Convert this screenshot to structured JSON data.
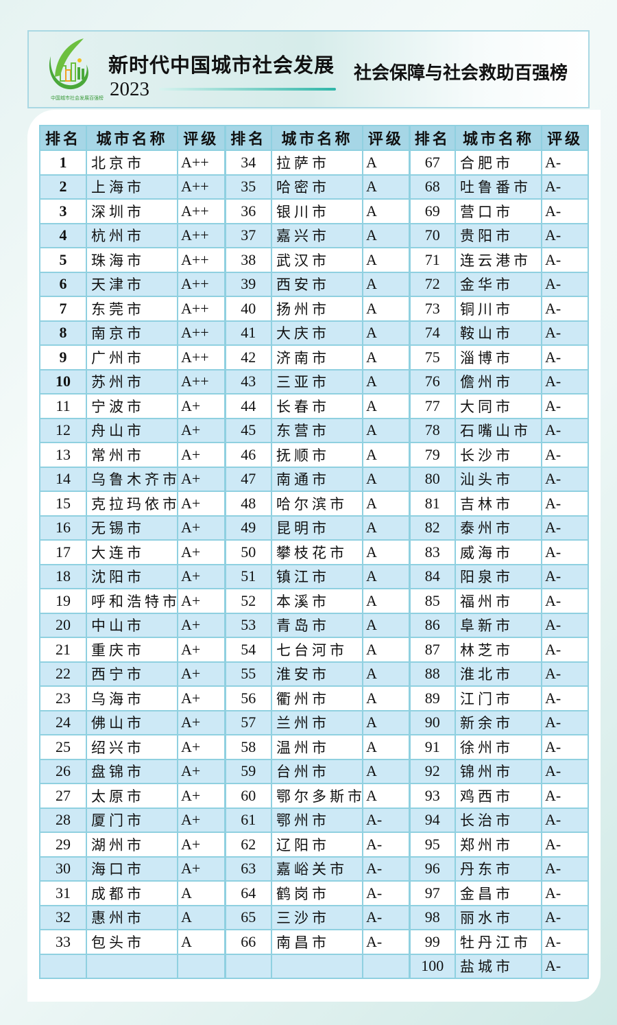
{
  "header": {
    "title": "新时代中国城市社会发展",
    "year": "2023",
    "logo_text": "中国城市社会发展百强榜",
    "subtitle": "社会保障与社会救助百强榜"
  },
  "columns": [
    "排名",
    "城市名称",
    "评级"
  ],
  "colors": {
    "header_row": "#a6d6e6",
    "alt_row": "#cde9f6",
    "border": "#8fd0e0",
    "accent_line": "#2fb6a8"
  },
  "rankings": [
    {
      "rank": "1",
      "city": "北京市",
      "grade": "A++"
    },
    {
      "rank": "2",
      "city": "上海市",
      "grade": "A++"
    },
    {
      "rank": "3",
      "city": "深圳市",
      "grade": "A++"
    },
    {
      "rank": "4",
      "city": "杭州市",
      "grade": "A++"
    },
    {
      "rank": "5",
      "city": "珠海市",
      "grade": "A++"
    },
    {
      "rank": "6",
      "city": "天津市",
      "grade": "A++"
    },
    {
      "rank": "7",
      "city": "东莞市",
      "grade": "A++"
    },
    {
      "rank": "8",
      "city": "南京市",
      "grade": "A++"
    },
    {
      "rank": "9",
      "city": "广州市",
      "grade": "A++"
    },
    {
      "rank": "10",
      "city": "苏州市",
      "grade": "A++"
    },
    {
      "rank": "11",
      "city": "宁波市",
      "grade": "A+"
    },
    {
      "rank": "12",
      "city": "舟山市",
      "grade": "A+"
    },
    {
      "rank": "13",
      "city": "常州市",
      "grade": "A+"
    },
    {
      "rank": "14",
      "city": "乌鲁木齐市",
      "grade": "A+"
    },
    {
      "rank": "15",
      "city": "克拉玛依市",
      "grade": "A+"
    },
    {
      "rank": "16",
      "city": "无锡市",
      "grade": "A+"
    },
    {
      "rank": "17",
      "city": "大连市",
      "grade": "A+"
    },
    {
      "rank": "18",
      "city": "沈阳市",
      "grade": "A+"
    },
    {
      "rank": "19",
      "city": "呼和浩特市",
      "grade": "A+"
    },
    {
      "rank": "20",
      "city": "中山市",
      "grade": "A+"
    },
    {
      "rank": "21",
      "city": "重庆市",
      "grade": "A+"
    },
    {
      "rank": "22",
      "city": "西宁市",
      "grade": "A+"
    },
    {
      "rank": "23",
      "city": "乌海市",
      "grade": "A+"
    },
    {
      "rank": "24",
      "city": "佛山市",
      "grade": "A+"
    },
    {
      "rank": "25",
      "city": "绍兴市",
      "grade": "A+"
    },
    {
      "rank": "26",
      "city": "盘锦市",
      "grade": "A+"
    },
    {
      "rank": "27",
      "city": "太原市",
      "grade": "A+"
    },
    {
      "rank": "28",
      "city": "厦门市",
      "grade": "A+"
    },
    {
      "rank": "29",
      "city": "湖州市",
      "grade": "A+"
    },
    {
      "rank": "30",
      "city": "海口市",
      "grade": "A+"
    },
    {
      "rank": "31",
      "city": "成都市",
      "grade": "A"
    },
    {
      "rank": "32",
      "city": "惠州市",
      "grade": "A"
    },
    {
      "rank": "33",
      "city": "包头市",
      "grade": "A"
    },
    {
      "rank": "34",
      "city": "拉萨市",
      "grade": "A"
    },
    {
      "rank": "35",
      "city": "哈密市",
      "grade": "A"
    },
    {
      "rank": "36",
      "city": "银川市",
      "grade": "A"
    },
    {
      "rank": "37",
      "city": "嘉兴市",
      "grade": "A"
    },
    {
      "rank": "38",
      "city": "武汉市",
      "grade": "A"
    },
    {
      "rank": "39",
      "city": "西安市",
      "grade": "A"
    },
    {
      "rank": "40",
      "city": "扬州市",
      "grade": "A"
    },
    {
      "rank": "41",
      "city": "大庆市",
      "grade": "A"
    },
    {
      "rank": "42",
      "city": "济南市",
      "grade": "A"
    },
    {
      "rank": "43",
      "city": "三亚市",
      "grade": "A"
    },
    {
      "rank": "44",
      "city": "长春市",
      "grade": "A"
    },
    {
      "rank": "45",
      "city": "东营市",
      "grade": "A"
    },
    {
      "rank": "46",
      "city": "抚顺市",
      "grade": "A"
    },
    {
      "rank": "47",
      "city": "南通市",
      "grade": "A"
    },
    {
      "rank": "48",
      "city": "哈尔滨市",
      "grade": "A"
    },
    {
      "rank": "49",
      "city": "昆明市",
      "grade": "A"
    },
    {
      "rank": "50",
      "city": "攀枝花市",
      "grade": "A"
    },
    {
      "rank": "51",
      "city": "镇江市",
      "grade": "A"
    },
    {
      "rank": "52",
      "city": "本溪市",
      "grade": "A"
    },
    {
      "rank": "53",
      "city": "青岛市",
      "grade": "A"
    },
    {
      "rank": "54",
      "city": "七台河市",
      "grade": "A"
    },
    {
      "rank": "55",
      "city": "淮安市",
      "grade": "A"
    },
    {
      "rank": "56",
      "city": "衢州市",
      "grade": "A"
    },
    {
      "rank": "57",
      "city": "兰州市",
      "grade": "A"
    },
    {
      "rank": "58",
      "city": "温州市",
      "grade": "A"
    },
    {
      "rank": "59",
      "city": "台州市",
      "grade": "A"
    },
    {
      "rank": "60",
      "city": "鄂尔多斯市",
      "grade": "A"
    },
    {
      "rank": "61",
      "city": "鄂州市",
      "grade": "A-"
    },
    {
      "rank": "62",
      "city": "辽阳市",
      "grade": "A-"
    },
    {
      "rank": "63",
      "city": "嘉峪关市",
      "grade": "A-"
    },
    {
      "rank": "64",
      "city": "鹤岗市",
      "grade": "A-"
    },
    {
      "rank": "65",
      "city": "三沙市",
      "grade": "A-"
    },
    {
      "rank": "66",
      "city": "南昌市",
      "grade": "A-"
    },
    {
      "rank": "67",
      "city": "合肥市",
      "grade": "A-"
    },
    {
      "rank": "68",
      "city": "吐鲁番市",
      "grade": "A-"
    },
    {
      "rank": "69",
      "city": "营口市",
      "grade": "A-"
    },
    {
      "rank": "70",
      "city": "贵阳市",
      "grade": "A-"
    },
    {
      "rank": "71",
      "city": "连云港市",
      "grade": "A-"
    },
    {
      "rank": "72",
      "city": "金华市",
      "grade": "A-"
    },
    {
      "rank": "73",
      "city": "铜川市",
      "grade": "A-"
    },
    {
      "rank": "74",
      "city": "鞍山市",
      "grade": "A-"
    },
    {
      "rank": "75",
      "city": "淄博市",
      "grade": "A-"
    },
    {
      "rank": "76",
      "city": "儋州市",
      "grade": "A-"
    },
    {
      "rank": "77",
      "city": "大同市",
      "grade": "A-"
    },
    {
      "rank": "78",
      "city": "石嘴山市",
      "grade": "A-"
    },
    {
      "rank": "79",
      "city": "长沙市",
      "grade": "A-"
    },
    {
      "rank": "80",
      "city": "汕头市",
      "grade": "A-"
    },
    {
      "rank": "81",
      "city": "吉林市",
      "grade": "A-"
    },
    {
      "rank": "82",
      "city": "泰州市",
      "grade": "A-"
    },
    {
      "rank": "83",
      "city": "威海市",
      "grade": "A-"
    },
    {
      "rank": "84",
      "city": "阳泉市",
      "grade": "A-"
    },
    {
      "rank": "85",
      "city": "福州市",
      "grade": "A-"
    },
    {
      "rank": "86",
      "city": "阜新市",
      "grade": "A-"
    },
    {
      "rank": "87",
      "city": "林芝市",
      "grade": "A-"
    },
    {
      "rank": "88",
      "city": "淮北市",
      "grade": "A-"
    },
    {
      "rank": "89",
      "city": "江门市",
      "grade": "A-"
    },
    {
      "rank": "90",
      "city": "新余市",
      "grade": "A-"
    },
    {
      "rank": "91",
      "city": "徐州市",
      "grade": "A-"
    },
    {
      "rank": "92",
      "city": "锦州市",
      "grade": "A-"
    },
    {
      "rank": "93",
      "city": "鸡西市",
      "grade": "A-"
    },
    {
      "rank": "94",
      "city": "长治市",
      "grade": "A-"
    },
    {
      "rank": "95",
      "city": "郑州市",
      "grade": "A-"
    },
    {
      "rank": "96",
      "city": "丹东市",
      "grade": "A-"
    },
    {
      "rank": "97",
      "city": "金昌市",
      "grade": "A-"
    },
    {
      "rank": "98",
      "city": "丽水市",
      "grade": "A-"
    },
    {
      "rank": "99",
      "city": "牡丹江市",
      "grade": "A-"
    },
    {
      "rank": "100",
      "city": "盐城市",
      "grade": "A-"
    }
  ]
}
